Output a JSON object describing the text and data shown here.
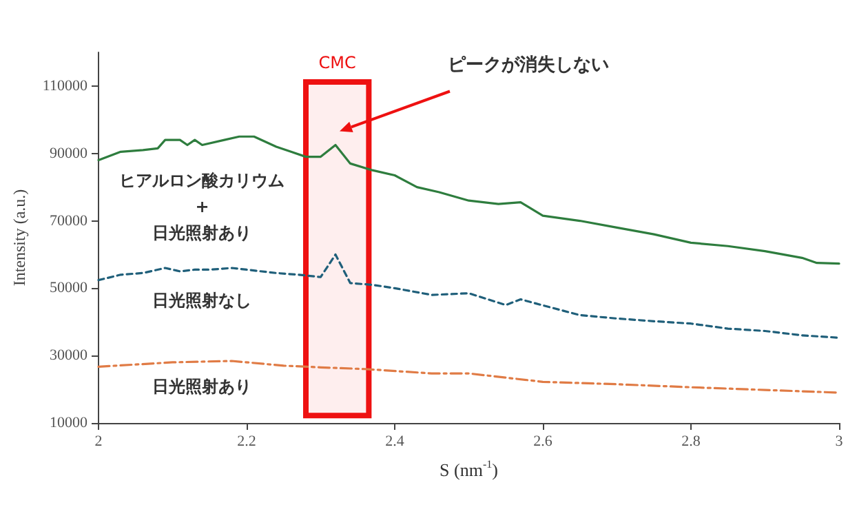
{
  "chart_data": {
    "type": "line",
    "x": [
      2.0,
      2.03,
      2.06,
      2.08,
      2.09,
      2.11,
      2.12,
      2.13,
      2.14,
      2.17,
      2.19,
      2.21,
      2.24,
      2.26,
      2.28,
      2.3,
      2.32,
      2.34,
      2.37,
      2.4,
      2.43,
      2.46,
      2.5,
      2.54,
      2.57,
      2.6,
      2.65,
      2.7,
      2.75,
      2.8,
      2.85,
      2.9,
      2.95,
      2.97,
      3.0
    ],
    "series": [
      {
        "name": "ヒアルロン酸カリウム\n+\n日光照射あり",
        "color": "#2e7d3e",
        "line_style": "solid",
        "values": [
          88000,
          90500,
          91000,
          91500,
          94000,
          94000,
          92500,
          94000,
          92500,
          94000,
          95000,
          95000,
          92000,
          90500,
          89000,
          89000,
          92500,
          87000,
          85000,
          83500,
          80000,
          78500,
          76000,
          75000,
          75500,
          71500,
          70000,
          68000,
          66000,
          63500,
          62500,
          61000,
          59000,
          57500,
          57300
        ]
      },
      {
        "name": "日光照射なし",
        "color": "#1f5f7a",
        "line_style": "dashed",
        "x": [
          2.0,
          2.03,
          2.06,
          2.09,
          2.11,
          2.13,
          2.15,
          2.18,
          2.2,
          2.24,
          2.27,
          2.3,
          2.32,
          2.34,
          2.37,
          2.4,
          2.45,
          2.5,
          2.55,
          2.57,
          2.59,
          2.65,
          2.7,
          2.75,
          2.8,
          2.85,
          2.9,
          2.95,
          3.0
        ],
        "values": [
          52400,
          54000,
          54500,
          56000,
          55000,
          55500,
          55500,
          56000,
          55500,
          54500,
          54000,
          53300,
          60000,
          51500,
          51000,
          50000,
          48000,
          48500,
          45000,
          46700,
          45500,
          42000,
          41000,
          40200,
          39500,
          38000,
          37300,
          36000,
          35300
        ]
      },
      {
        "name": "日光照射あり",
        "color": "#e07b45",
        "line_style": "dashdot",
        "x": [
          2.0,
          2.1,
          2.18,
          2.25,
          2.3,
          2.36,
          2.45,
          2.5,
          2.6,
          2.7,
          2.8,
          2.9,
          3.0
        ],
        "values": [
          26700,
          28000,
          28400,
          27000,
          26500,
          26000,
          24700,
          24700,
          22200,
          21500,
          20600,
          19800,
          19000
        ]
      }
    ],
    "xlabel": "S (nm$^{-1}$)",
    "ylabel": "Intensity (a.u.)",
    "xlim": [
      2,
      3
    ],
    "xticks": [
      2,
      2.2,
      2.4,
      2.6,
      2.8,
      3
    ],
    "ylim": [
      10000,
      120000
    ],
    "yticks": [
      10000,
      30000,
      50000,
      70000,
      90000,
      110000
    ],
    "bands": [
      {
        "axis": "x",
        "from": 2.28,
        "to": 2.365,
        "label": "CMC",
        "color": "#ee1111"
      }
    ],
    "annotations": [
      "ピークが消失しない"
    ],
    "grid": false,
    "legend": false,
    "marker": "none"
  }
}
